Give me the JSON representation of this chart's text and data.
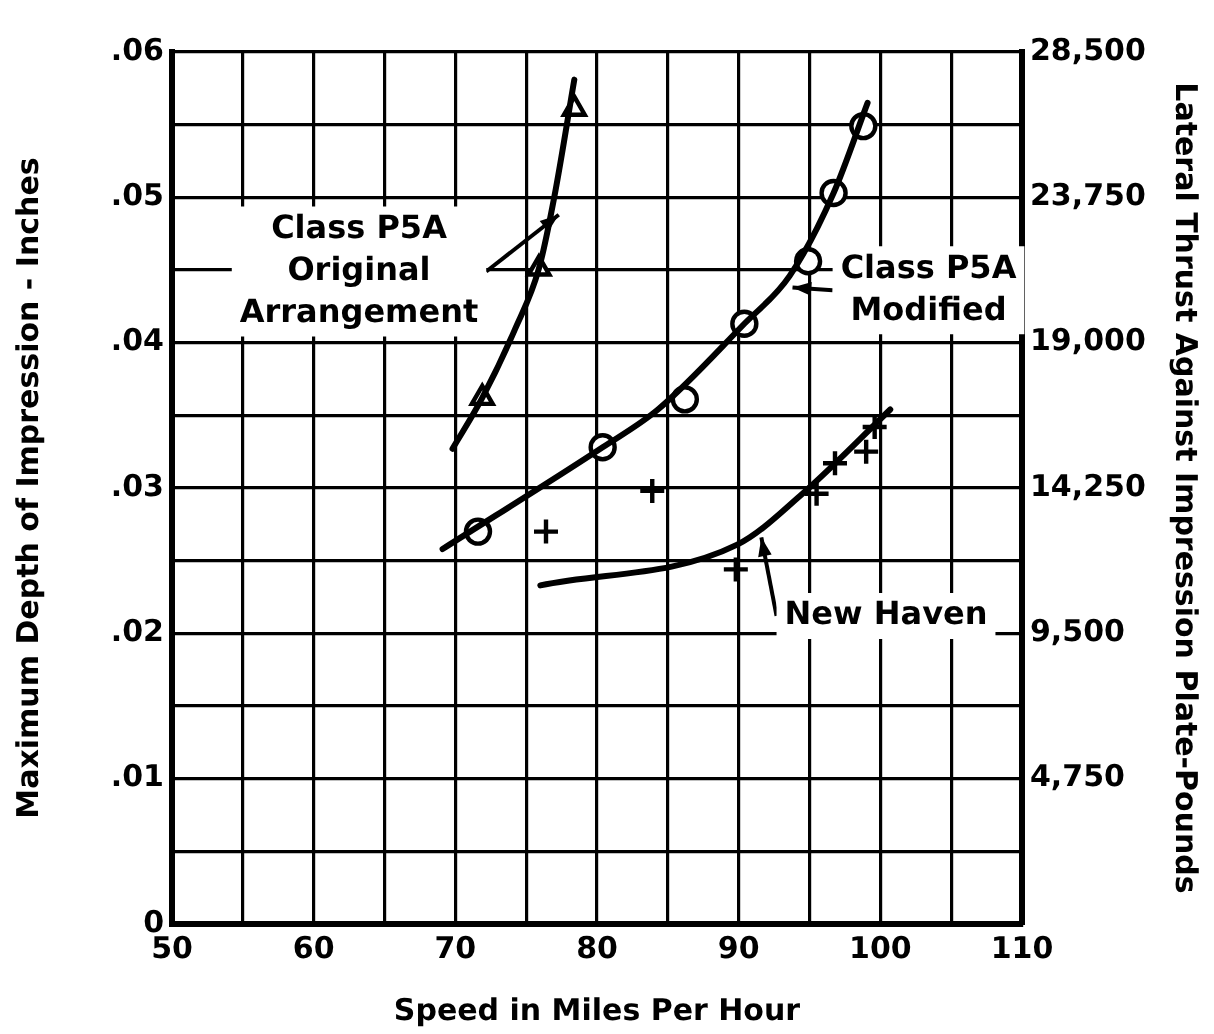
{
  "chart_data": {
    "type": "scatter",
    "xlabel": "Speed in Miles Per Hour",
    "ylabel": "Maximum Depth of Impression - Inches",
    "y2label": "Lateral Thrust Against Impression Plate-Pounds",
    "xlim": [
      50,
      110
    ],
    "xticks": [
      50,
      {
        "value": 55,
        "label": null
      },
      60,
      {
        "value": 65,
        "label": null
      },
      70,
      {
        "value": 75,
        "label": null
      },
      80,
      {
        "value": 85,
        "label": null
      },
      90,
      {
        "value": 95,
        "label": null
      },
      100,
      {
        "value": 105,
        "label": null
      },
      110
    ],
    "ylim": [
      0,
      0.06
    ],
    "yticks": [
      {
        "value": 0,
        "label": "0"
      },
      {
        "value": 0.005,
        "label": null
      },
      {
        "value": 0.01,
        "label": ".01"
      },
      {
        "value": 0.015,
        "label": null
      },
      {
        "value": 0.02,
        "label": ".02"
      },
      {
        "value": 0.025,
        "label": null
      },
      {
        "value": 0.03,
        "label": ".03"
      },
      {
        "value": 0.035,
        "label": null
      },
      {
        "value": 0.04,
        "label": ".04"
      },
      {
        "value": 0.045,
        "label": null
      },
      {
        "value": 0.05,
        "label": ".05"
      },
      {
        "value": 0.055,
        "label": null
      },
      {
        "value": 0.06,
        "label": ".06"
      }
    ],
    "y2lim": [
      0,
      28500
    ],
    "y2ticks": [
      {
        "value": 4750,
        "label": "4,750"
      },
      {
        "value": 9500,
        "label": "9,500"
      },
      {
        "value": 14250,
        "label": "14,250"
      },
      {
        "value": 19000,
        "label": "19,000"
      },
      {
        "value": 23750,
        "label": "23,750"
      },
      {
        "value": 28500,
        "label": "28,500"
      }
    ],
    "grid": true,
    "series": [
      {
        "type": "line",
        "name": "Class P5A Original Arrangement",
        "color": "#000000",
        "marker": "none",
        "x": [
          69.8,
          71.9,
          74.2,
          75.9,
          77.0,
          78.4
        ],
        "values": [
          0.0327,
          0.0362,
          0.0409,
          0.0451,
          0.0501,
          0.0581
        ]
      },
      {
        "type": "scatter",
        "color": "#000000",
        "marker": "triangle",
        "x": [
          71.9,
          75.9,
          78.4
        ],
        "values": [
          0.0362,
          0.0451,
          0.0561
        ]
      },
      {
        "type": "line",
        "name": "Class P5A Modified",
        "color": "#000000",
        "marker": "none",
        "x": [
          69.1,
          80.4,
          84.3,
          90.4,
          93.6,
          96.7,
          99.1
        ],
        "values": [
          0.0258,
          0.0328,
          0.0354,
          0.0413,
          0.0446,
          0.0503,
          0.0565
        ]
      },
      {
        "type": "scatter",
        "color": "#000000",
        "marker": "circle",
        "x": [
          71.6,
          80.4,
          86.2,
          90.4,
          94.9,
          96.7,
          98.8
        ],
        "values": [
          0.027,
          0.0328,
          0.0361,
          0.0413,
          0.0456,
          0.0503,
          0.0549
        ]
      },
      {
        "type": "line",
        "name": "New Haven",
        "color": "#000000",
        "marker": "none",
        "x": [
          76.0,
          89.9,
          94.5,
          100.7
        ],
        "values": [
          0.0233,
          0.0261,
          0.0296,
          0.0354
        ]
      },
      {
        "type": "scatter",
        "color": "#000000",
        "marker": "cross",
        "x": [
          76.4,
          83.9,
          89.8,
          95.5,
          96.8,
          99.0,
          99.6
        ],
        "values": [
          0.027,
          0.0298,
          0.0244,
          0.0296,
          0.0317,
          0.0325,
          0.0342
        ]
      }
    ]
  }
}
